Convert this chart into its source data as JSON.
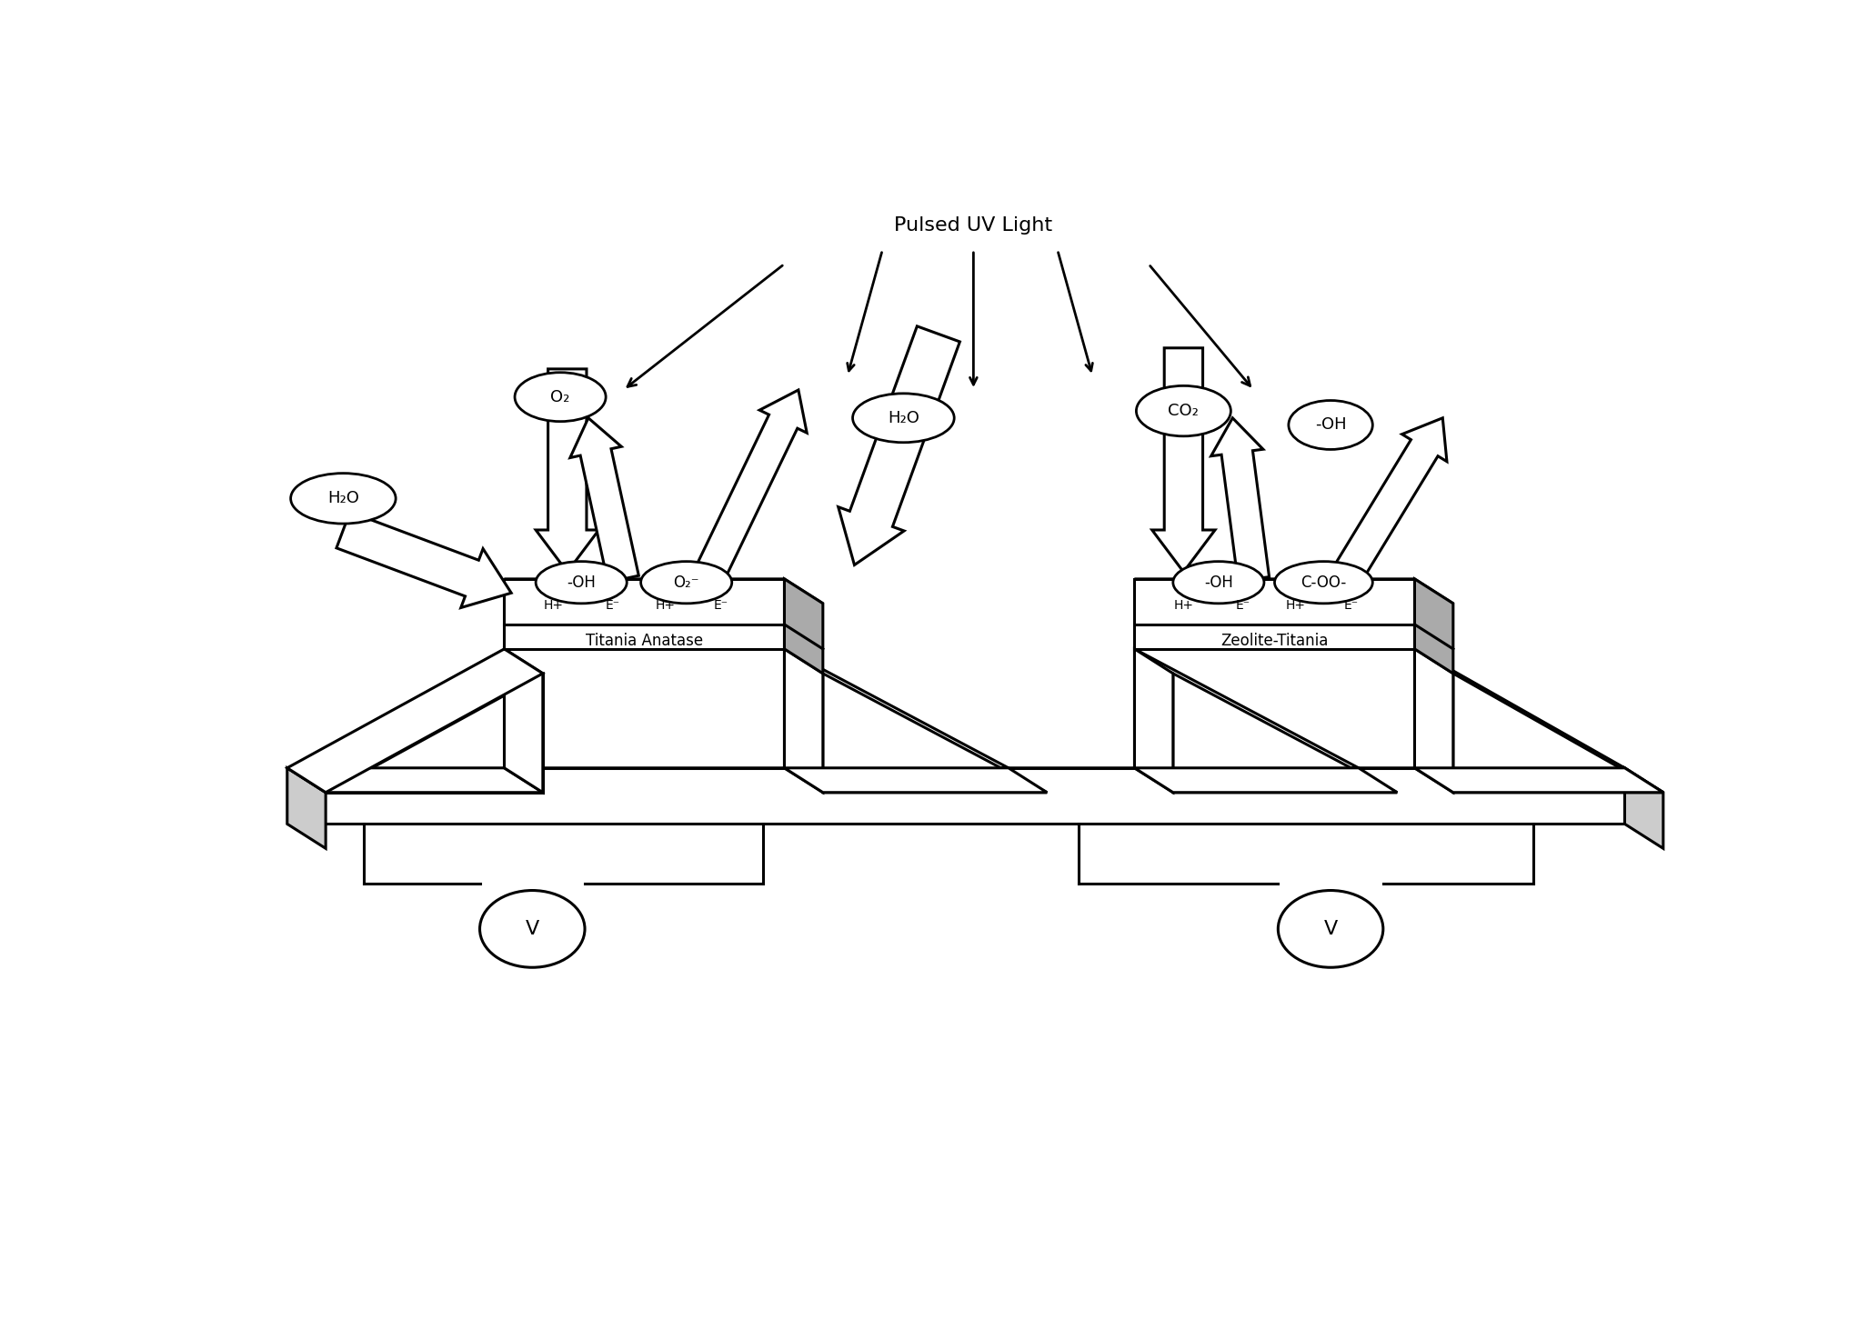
{
  "bg_color": "#ffffff",
  "line_color": "#000000",
  "title": "Pulsed UV Light",
  "left_plate_label": "Titania Anatase",
  "right_plate_label": "Zeolite-Titania",
  "voltmeter_label": "V",
  "figsize": [
    20.54,
    14.51
  ],
  "dpi": 100
}
